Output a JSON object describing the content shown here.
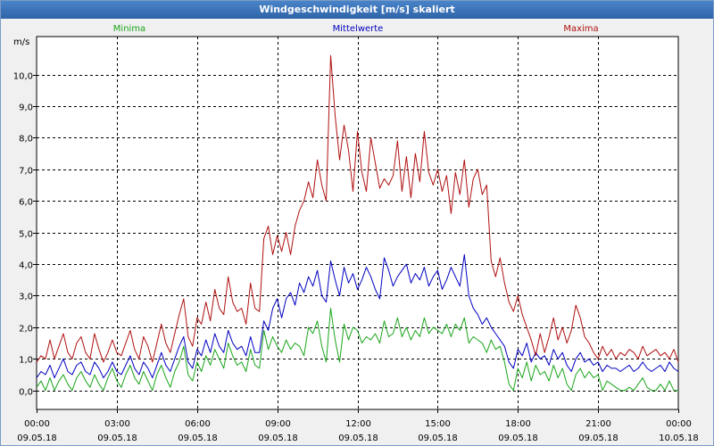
{
  "window": {
    "title": "Windgeschwindigkeit [m/s] skaliert"
  },
  "colors": {
    "min": "#1aa51a",
    "mean": "#0000c0",
    "max": "#b01010"
  },
  "chart_data": {
    "type": "line",
    "title": "Windgeschwindigkeit [m/s] skaliert",
    "ylabel": "m/s",
    "ylim": [
      -0.6,
      11.2
    ],
    "yticks": [
      0,
      1,
      2,
      3,
      4,
      5,
      6,
      7,
      8,
      9,
      10
    ],
    "ytick_labels": [
      "0,0",
      "1,0",
      "2,0",
      "3,0",
      "4,0",
      "5,0",
      "6,0",
      "7,0",
      "8,0",
      "9,0",
      "10,0"
    ],
    "xlim": [
      0,
      24
    ],
    "xticks": [
      {
        "t": 0,
        "time": "00:00",
        "date": "09.05.18"
      },
      {
        "t": 3,
        "time": "03:00",
        "date": "09.05.18"
      },
      {
        "t": 6,
        "time": "06:00",
        "date": "09.05.18"
      },
      {
        "t": 9,
        "time": "09:00",
        "date": "09.05.18"
      },
      {
        "t": 12,
        "time": "12:00",
        "date": "09.05.18"
      },
      {
        "t": 15,
        "time": "15:00",
        "date": "09.05.18"
      },
      {
        "t": 18,
        "time": "18:00",
        "date": "09.05.18"
      },
      {
        "t": 21,
        "time": "21:00",
        "date": "09.05.18"
      },
      {
        "t": 24,
        "time": "00:00",
        "date": "10.05.18"
      }
    ],
    "interval_hours": 0.1667,
    "series": [
      {
        "name": "Minima",
        "color": "#1aa51a",
        "values": [
          0.1,
          0.3,
          0.0,
          0.4,
          0.0,
          0.3,
          0.5,
          0.2,
          0.0,
          0.4,
          0.6,
          0.3,
          0.1,
          0.5,
          0.2,
          0.0,
          0.4,
          0.7,
          0.3,
          0.1,
          0.5,
          0.8,
          0.4,
          0.2,
          0.6,
          0.3,
          0.0,
          0.5,
          0.8,
          0.4,
          0.1,
          0.6,
          0.9,
          1.4,
          0.5,
          0.3,
          0.9,
          0.6,
          1.1,
          0.8,
          1.3,
          1.0,
          0.7,
          1.5,
          1.1,
          0.8,
          0.9,
          0.6,
          1.3,
          0.8,
          0.7,
          1.9,
          1.3,
          1.7,
          1.4,
          1.2,
          1.6,
          1.3,
          1.5,
          1.4,
          1.1,
          2.0,
          1.8,
          2.2,
          1.4,
          0.9,
          2.6,
          1.6,
          0.9,
          2.1,
          1.6,
          2.0,
          1.9,
          1.5,
          1.7,
          1.6,
          1.8,
          1.5,
          2.2,
          1.7,
          1.8,
          2.3,
          1.7,
          2.0,
          1.6,
          1.9,
          1.7,
          2.3,
          1.8,
          2.0,
          1.9,
          1.8,
          2.1,
          1.7,
          2.1,
          1.9,
          2.3,
          1.5,
          1.7,
          1.6,
          1.5,
          1.2,
          1.6,
          1.3,
          1.4,
          0.9,
          0.2,
          0.0,
          0.7,
          0.4,
          0.9,
          0.3,
          0.8,
          0.5,
          0.6,
          0.3,
          0.8,
          0.4,
          0.7,
          0.2,
          0.0,
          0.5,
          0.7,
          0.4,
          0.6,
          0.4,
          0.5,
          0.0,
          0.3,
          0.2,
          0.1,
          0.0,
          0.0,
          0.1,
          0.0,
          0.2,
          0.4,
          0.1,
          0.0,
          0.0,
          0.2,
          0.0,
          0.3,
          0.0,
          0.0
        ]
      },
      {
        "name": "Mittelwerte",
        "color": "#0000c0",
        "values": [
          0.4,
          0.6,
          0.5,
          0.8,
          0.4,
          0.7,
          1.0,
          0.6,
          0.5,
          0.8,
          0.9,
          0.6,
          0.5,
          0.9,
          0.7,
          0.4,
          0.6,
          0.9,
          0.6,
          0.5,
          0.8,
          1.1,
          0.7,
          0.5,
          0.9,
          0.7,
          0.4,
          0.8,
          1.2,
          0.8,
          0.6,
          1.0,
          1.4,
          1.7,
          0.9,
          0.7,
          1.3,
          1.1,
          1.6,
          1.2,
          1.8,
          1.4,
          1.2,
          1.9,
          1.5,
          1.3,
          1.4,
          1.1,
          1.7,
          1.2,
          1.2,
          2.2,
          1.9,
          2.6,
          2.9,
          2.3,
          2.9,
          3.1,
          2.7,
          3.4,
          3.1,
          3.6,
          3.3,
          3.8,
          3.0,
          2.8,
          4.1,
          3.5,
          3.0,
          3.9,
          3.4,
          3.7,
          3.2,
          3.5,
          3.9,
          3.6,
          3.2,
          2.9,
          4.2,
          3.8,
          3.3,
          3.6,
          3.8,
          4.0,
          3.4,
          3.7,
          3.5,
          3.9,
          3.3,
          3.6,
          3.8,
          3.2,
          3.5,
          3.9,
          3.6,
          3.3,
          4.3,
          3.0,
          2.6,
          2.4,
          2.1,
          2.3,
          2.0,
          1.8,
          1.6,
          1.4,
          0.9,
          0.7,
          1.3,
          1.1,
          1.5,
          0.9,
          1.2,
          1.0,
          1.1,
          0.8,
          1.3,
          1.0,
          1.2,
          0.8,
          0.6,
          1.0,
          1.2,
          0.9,
          1.0,
          0.8,
          0.9,
          0.6,
          0.8,
          0.7,
          0.7,
          0.6,
          0.7,
          0.8,
          0.6,
          0.7,
          0.9,
          0.7,
          0.6,
          0.7,
          0.8,
          0.6,
          0.9,
          0.7,
          0.6
        ]
      },
      {
        "name": "Maxima",
        "color": "#b01010",
        "values": [
          0.9,
          1.1,
          1.0,
          1.6,
          1.0,
          1.4,
          1.8,
          1.2,
          1.0,
          1.5,
          1.7,
          1.2,
          1.0,
          1.8,
          1.3,
          0.9,
          1.2,
          1.6,
          1.2,
          1.1,
          1.5,
          1.9,
          1.3,
          1.0,
          1.7,
          1.4,
          0.9,
          1.5,
          2.1,
          1.5,
          1.2,
          1.8,
          2.4,
          2.9,
          1.7,
          1.4,
          2.3,
          2.1,
          2.8,
          2.2,
          3.2,
          2.6,
          2.4,
          3.6,
          2.8,
          2.5,
          2.6,
          2.1,
          3.4,
          2.6,
          2.5,
          4.8,
          5.2,
          4.3,
          4.9,
          4.4,
          5.0,
          4.3,
          5.2,
          5.7,
          6.0,
          6.6,
          6.1,
          7.3,
          6.5,
          6.0,
          10.6,
          8.7,
          7.3,
          8.4,
          7.6,
          6.3,
          8.2,
          6.9,
          6.3,
          8.0,
          7.2,
          6.4,
          6.7,
          6.5,
          6.8,
          7.9,
          6.3,
          7.4,
          6.1,
          7.5,
          6.6,
          8.2,
          6.9,
          6.5,
          7.0,
          6.3,
          6.8,
          5.6,
          6.9,
          6.2,
          7.3,
          5.8,
          6.7,
          7.0,
          6.2,
          6.5,
          4.1,
          3.6,
          4.2,
          3.4,
          2.8,
          2.5,
          3.0,
          2.4,
          2.0,
          1.6,
          1.1,
          1.8,
          1.2,
          1.7,
          2.3,
          1.6,
          2.0,
          1.5,
          1.9,
          2.7,
          2.3,
          1.7,
          1.5,
          1.2,
          1.0,
          1.4,
          1.1,
          1.3,
          1.0,
          1.2,
          1.1,
          1.3,
          1.2,
          1.0,
          1.4,
          1.1,
          1.2,
          1.3,
          1.1,
          1.2,
          1.0,
          1.3,
          0.9
        ]
      }
    ]
  }
}
